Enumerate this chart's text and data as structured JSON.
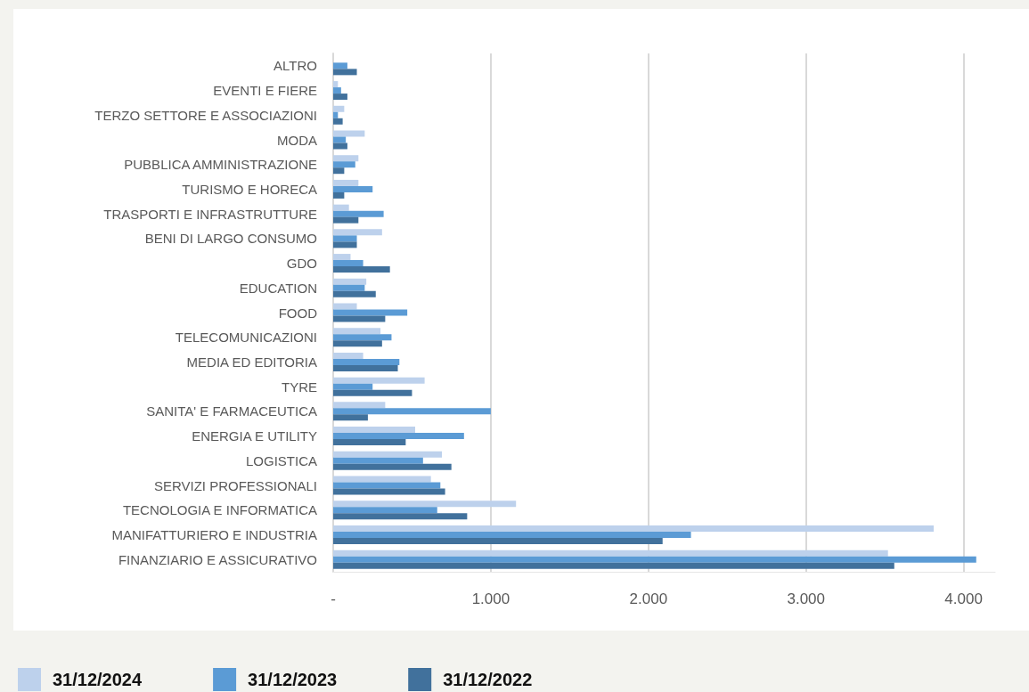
{
  "chart_data": {
    "type": "bar",
    "orientation": "horizontal",
    "categories": [
      "ALTRO",
      "EVENTI E FIERE",
      "TERZO SETTORE E ASSOCIAZIONI",
      "MODA",
      "PUBBLICA AMMINISTRAZIONE",
      "TURISMO E HORECA",
      "TRASPORTI E INFRASTRUTTURE",
      "BENI DI LARGO CONSUMO",
      "GDO",
      "EDUCATION",
      "FOOD",
      "TELECOMUNICAZIONI",
      "MEDIA ED EDITORIA",
      "TYRE",
      "SANITA' E FARMACEUTICA",
      "ENERGIA E UTILITY",
      "LOGISTICA",
      "SERVIZI PROFESSIONALI",
      "TECNOLOGIA E INFORMATICA",
      "MANIFATTURIERO E INDUSTRIA",
      "FINANZIARIO E ASSICURATIVO"
    ],
    "series": [
      {
        "name": "31/12/2024",
        "color": "#bdd1ec",
        "values": [
          null,
          30,
          70,
          200,
          160,
          160,
          100,
          310,
          110,
          210,
          150,
          300,
          190,
          580,
          330,
          520,
          690,
          620,
          1160,
          3810,
          3520
        ]
      },
      {
        "name": "31/12/2023",
        "color": "#5b9bd5",
        "values": [
          90,
          50,
          30,
          80,
          140,
          250,
          320,
          150,
          190,
          200,
          470,
          370,
          420,
          250,
          1000,
          830,
          570,
          680,
          660,
          2270,
          4080
        ]
      },
      {
        "name": "31/12/2022",
        "color": "#41719c",
        "values": [
          150,
          90,
          60,
          90,
          70,
          70,
          160,
          150,
          360,
          270,
          330,
          310,
          410,
          500,
          220,
          460,
          750,
          710,
          850,
          2090,
          3560
        ]
      }
    ],
    "xlim": [
      0,
      4200
    ],
    "xticks": [
      {
        "value": 0,
        "label": "-"
      },
      {
        "value": 1000,
        "label": "1.000"
      },
      {
        "value": 2000,
        "label": "2.000"
      },
      {
        "value": 3000,
        "label": "3.000"
      },
      {
        "value": 4000,
        "label": "4.000"
      }
    ],
    "grid": "x",
    "legend": "bottom left"
  }
}
